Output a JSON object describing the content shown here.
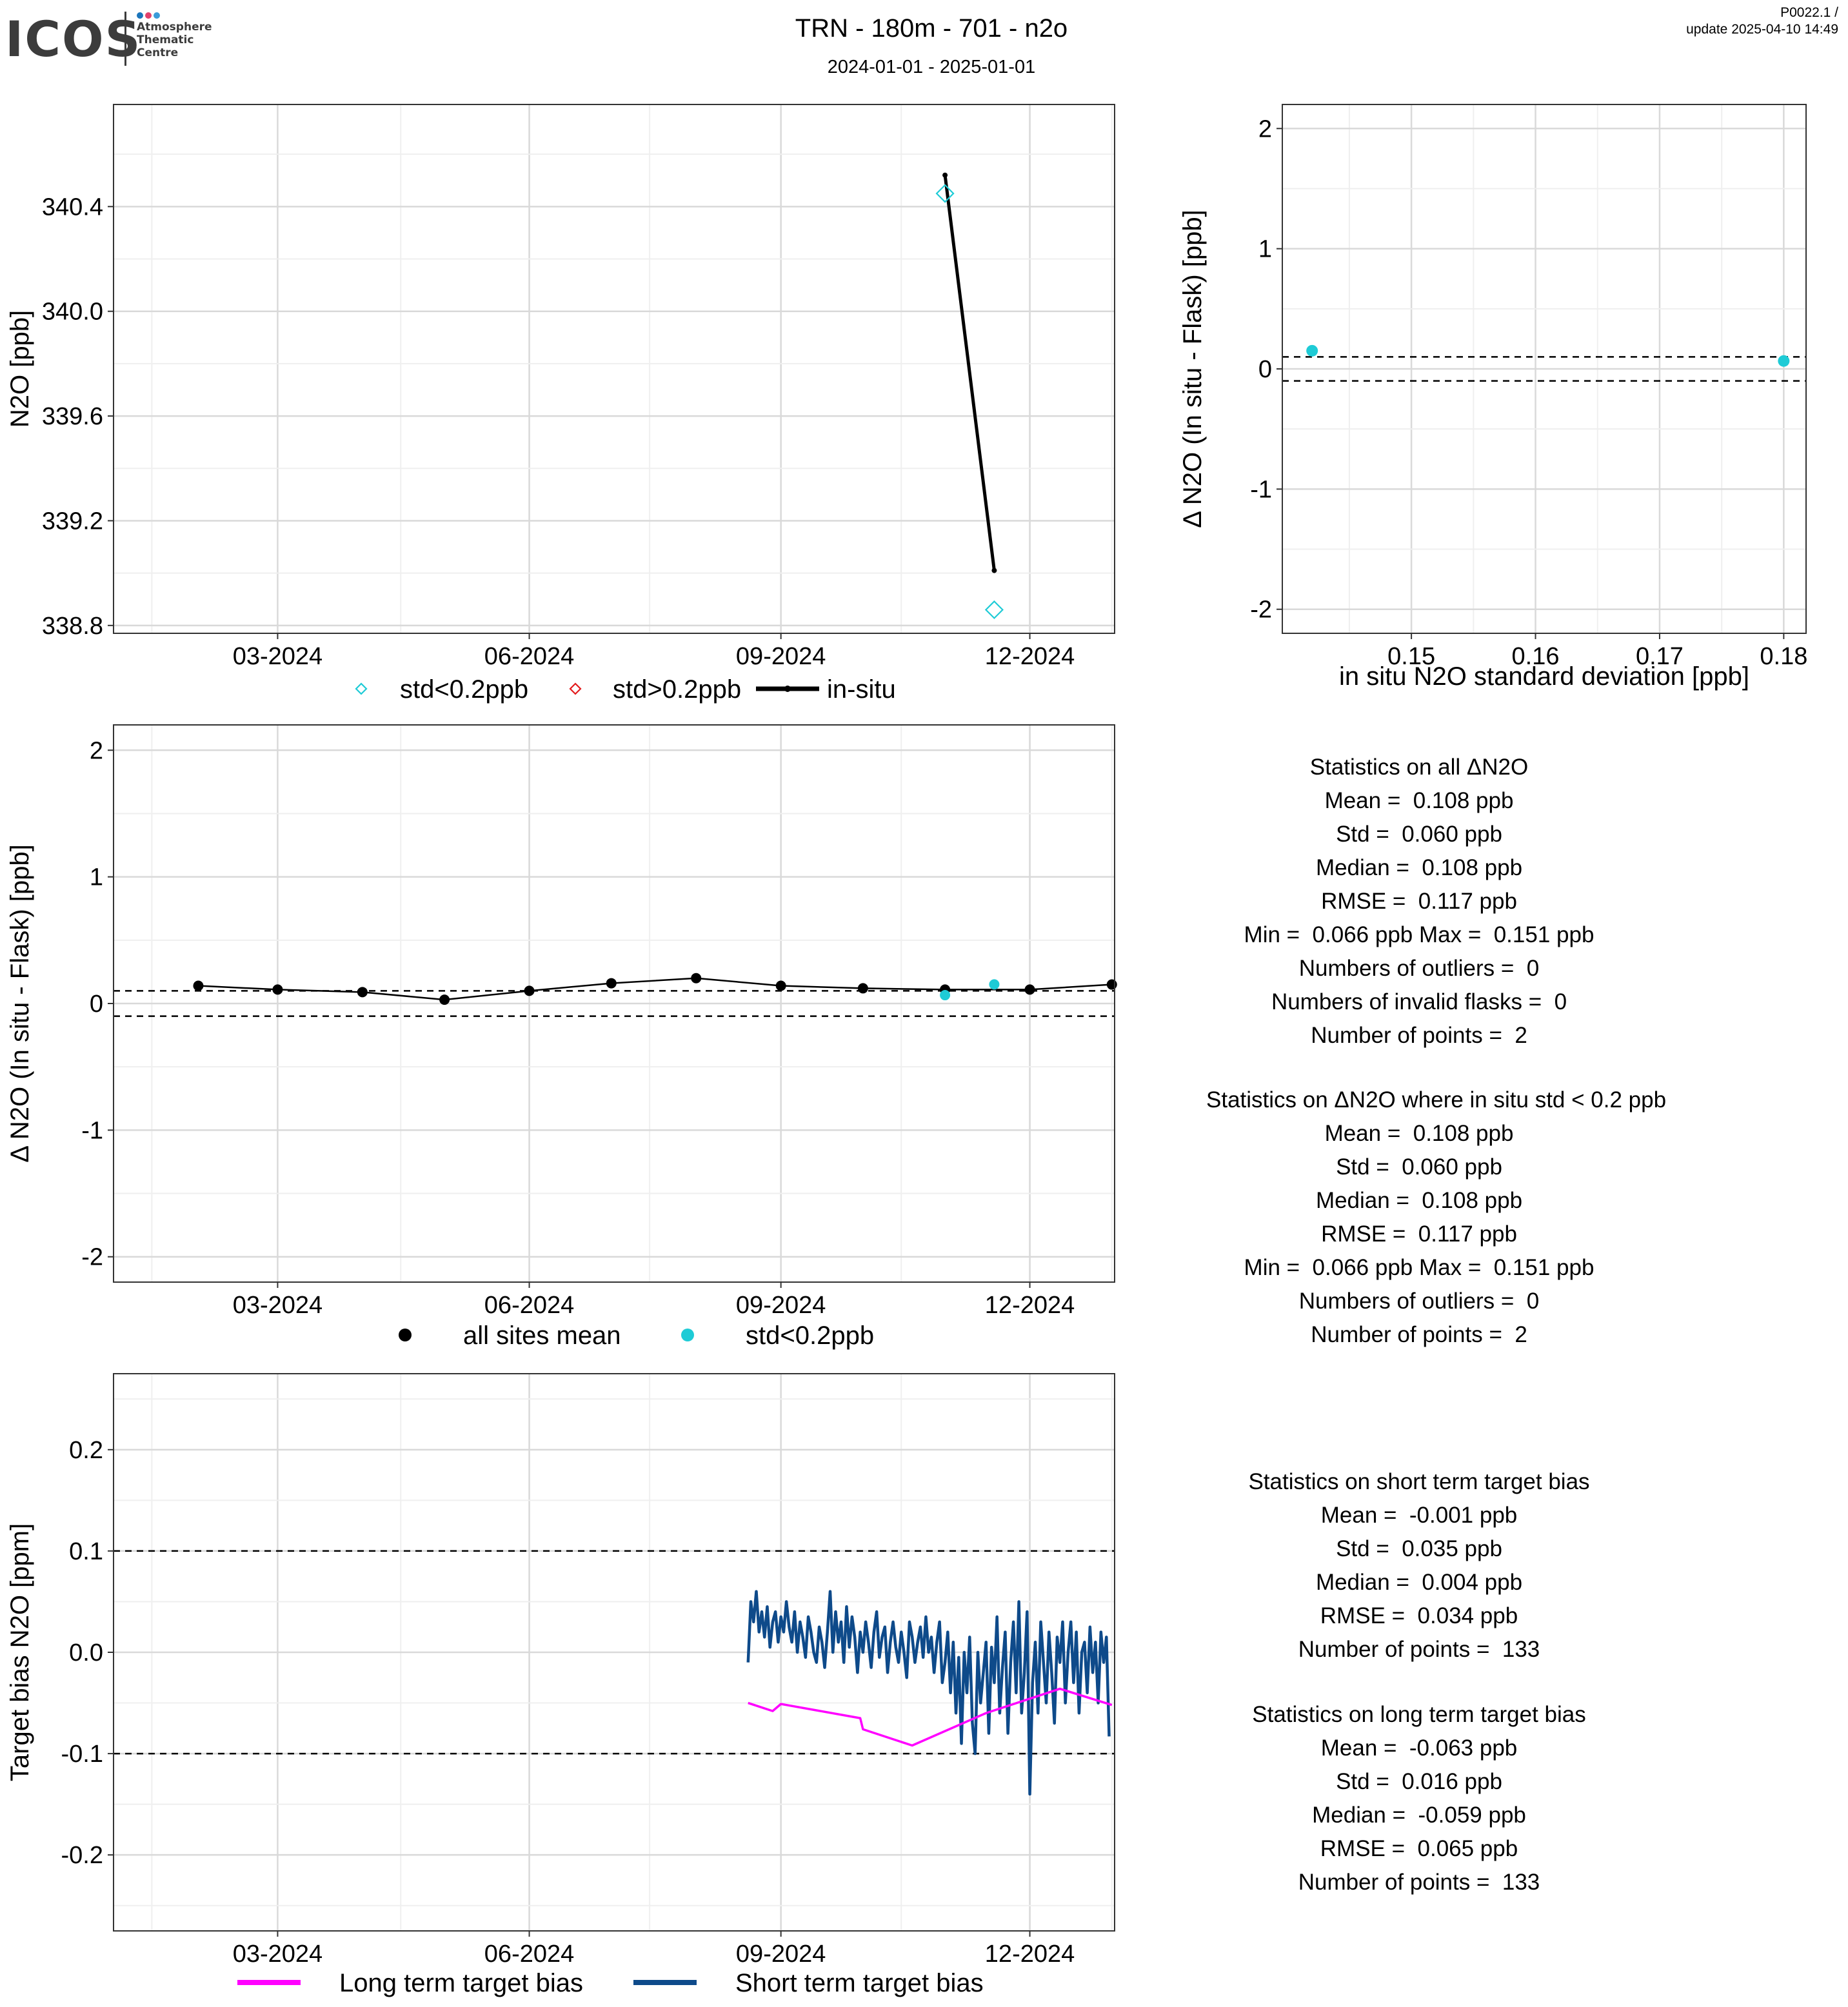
{
  "header": {
    "logo_main": "ICOS",
    "logo_sub": [
      "Atmosphere",
      "Thematic",
      "Centre"
    ],
    "title": "TRN - 180m - 701 - n2o",
    "subtitle": "2024-01-01 - 2025-01-01",
    "version": "P0022.1 /",
    "update": "update  2025-04-10 14:49"
  },
  "colors": {
    "cyan": "#1ECBD6",
    "red": "#E31A1C",
    "black": "#000000",
    "magenta": "#FF00FF",
    "navy": "#0E4A8A",
    "grid_major": "#D9D9D9",
    "grid_minor": "#EFEFEF"
  },
  "chart_data": [
    {
      "id": "n2o_timeseries",
      "type": "line",
      "ylabel": "N2O [ppb]",
      "xlabel": "",
      "x_ticks": [
        "03-2024",
        "06-2024",
        "09-2024",
        "12-2024"
      ],
      "xlim": [
        "2024-01-01",
        "2025-01-01"
      ],
      "ylim": [
        338.77,
        340.79
      ],
      "y_ticks": [
        "338.8",
        "339.2",
        "339.6",
        "340.0",
        "340.4"
      ],
      "series": [
        {
          "name": "in-situ",
          "style": "line",
          "x": [
            "2024-10-31",
            "2024-11-18"
          ],
          "y": [
            340.52,
            339.01
          ]
        },
        {
          "name": "std<0.2ppb",
          "style": "diamond",
          "x": [
            "2024-10-31",
            "2024-11-18"
          ],
          "y": [
            340.45,
            338.86
          ]
        },
        {
          "name": "std>0.2ppb",
          "style": "diamond",
          "x": [],
          "y": []
        }
      ],
      "legend": [
        "std<0.2ppb",
        "std>0.2ppb",
        "in-situ"
      ],
      "legend_position": "bottom"
    },
    {
      "id": "delta_vs_std",
      "type": "scatter",
      "ylabel": "Δ N2O (In situ - Flask) [ppb]",
      "xlabel": "in situ N2O standard deviation [ppb]",
      "xlim": [
        0.1396,
        0.1818
      ],
      "ylim": [
        -2.2,
        2.2
      ],
      "x_ticks": [
        "0.15",
        "0.16",
        "0.17",
        "0.18"
      ],
      "y_ticks": [
        "2",
        "1",
        "0",
        "-1",
        "-2"
      ],
      "ref_lines": [
        0.1,
        -0.1
      ],
      "series": [
        {
          "name": "std<0.2ppb",
          "x": [
            0.142,
            0.18
          ],
          "y": [
            0.151,
            0.066
          ]
        }
      ]
    },
    {
      "id": "delta_timeseries",
      "type": "scatter",
      "ylabel": "Δ N2O (In situ - Flask) [ppb]",
      "xlabel": "",
      "x_ticks": [
        "03-2024",
        "06-2024",
        "09-2024",
        "12-2024"
      ],
      "xlim": [
        "2024-01-01",
        "2025-01-01"
      ],
      "ylim": [
        -2.2,
        2.2
      ],
      "y_ticks": [
        "2",
        "1",
        "0",
        "-1",
        "-2"
      ],
      "ref_lines": [
        0.1,
        -0.1
      ],
      "series": [
        {
          "name": "all sites mean",
          "style": "line+point",
          "x": [
            "2024-02-01",
            "2024-03-01",
            "2024-04-01",
            "2024-05-01",
            "2024-06-01",
            "2024-07-01",
            "2024-08-01",
            "2024-09-01",
            "2024-10-01",
            "2024-10-31",
            "2024-12-01",
            "2024-12-31"
          ],
          "y": [
            0.14,
            0.11,
            0.09,
            0.03,
            0.1,
            0.16,
            0.2,
            0.14,
            0.12,
            0.11,
            0.11,
            0.15
          ]
        },
        {
          "name": "std<0.2ppb",
          "style": "point",
          "x": [
            "2024-10-31",
            "2024-11-18"
          ],
          "y": [
            0.066,
            0.151
          ]
        }
      ],
      "legend": [
        "all sites mean",
        "std<0.2ppb"
      ],
      "legend_position": "bottom"
    },
    {
      "id": "target_bias",
      "type": "line",
      "ylabel": "Target bias N2O [ppm]",
      "xlabel": "",
      "x_ticks": [
        "03-2024",
        "06-2024",
        "09-2024",
        "12-2024"
      ],
      "xlim": [
        "2024-01-01",
        "2025-01-01"
      ],
      "ylim": [
        -0.275,
        0.275
      ],
      "y_ticks": [
        "0.2",
        "0.1",
        "0.0",
        "-0.1",
        "-0.2"
      ],
      "ref_lines": [
        0.1,
        -0.1
      ],
      "series": [
        {
          "name": "Long term target bias",
          "x": [
            "2024-08-20",
            "2024-08-29",
            "2024-09-01",
            "2024-09-03",
            "2024-09-30",
            "2024-10-01",
            "2024-10-19",
            "2024-11-15",
            "2024-12-12",
            "2024-12-31"
          ],
          "y": [
            -0.05,
            -0.058,
            -0.051,
            -0.052,
            -0.065,
            -0.076,
            -0.092,
            -0.06,
            -0.036,
            -0.052
          ]
        },
        {
          "name": "Short term target bias",
          "x": [
            "2024-08-20",
            "2024-08-21",
            "2024-08-22",
            "2024-08-23",
            "2024-08-24",
            "2024-08-25",
            "2024-08-26",
            "2024-08-27",
            "2024-08-28",
            "2024-08-29",
            "2024-08-30",
            "2024-08-31",
            "2024-09-01",
            "2024-09-02",
            "2024-09-03",
            "2024-09-04",
            "2024-09-05",
            "2024-09-06",
            "2024-09-07",
            "2024-09-08",
            "2024-09-09",
            "2024-09-10",
            "2024-09-11",
            "2024-09-12",
            "2024-09-13",
            "2024-09-14",
            "2024-09-15",
            "2024-09-16",
            "2024-09-17",
            "2024-09-18",
            "2024-09-19",
            "2024-09-20",
            "2024-09-21",
            "2024-09-22",
            "2024-09-23",
            "2024-09-24",
            "2024-09-25",
            "2024-09-26",
            "2024-09-27",
            "2024-09-28",
            "2024-09-29",
            "2024-09-30",
            "2024-10-01",
            "2024-10-02",
            "2024-10-03",
            "2024-10-04",
            "2024-10-05",
            "2024-10-06",
            "2024-10-07",
            "2024-10-08",
            "2024-10-09",
            "2024-10-10",
            "2024-10-11",
            "2024-10-12",
            "2024-10-13",
            "2024-10-14",
            "2024-10-15",
            "2024-10-16",
            "2024-10-17",
            "2024-10-18",
            "2024-10-19",
            "2024-10-20",
            "2024-10-21",
            "2024-10-22",
            "2024-10-23",
            "2024-10-24",
            "2024-10-25",
            "2024-10-26",
            "2024-10-27",
            "2024-10-28",
            "2024-10-29",
            "2024-10-30",
            "2024-10-31",
            "2024-11-01",
            "2024-11-02",
            "2024-11-03",
            "2024-11-04",
            "2024-11-05",
            "2024-11-06",
            "2024-11-07",
            "2024-11-08",
            "2024-11-09",
            "2024-11-10",
            "2024-11-11",
            "2024-11-12",
            "2024-11-13",
            "2024-11-14",
            "2024-11-15",
            "2024-11-16",
            "2024-11-17",
            "2024-11-18",
            "2024-11-19",
            "2024-11-20",
            "2024-11-21",
            "2024-11-22",
            "2024-11-23",
            "2024-11-24",
            "2024-11-25",
            "2024-11-26",
            "2024-11-27",
            "2024-11-28",
            "2024-11-29",
            "2024-11-30",
            "2024-12-01",
            "2024-12-02",
            "2024-12-03",
            "2024-12-04",
            "2024-12-05",
            "2024-12-06",
            "2024-12-07",
            "2024-12-08",
            "2024-12-09",
            "2024-12-10",
            "2024-12-11",
            "2024-12-12",
            "2024-12-13",
            "2024-12-14",
            "2024-12-15",
            "2024-12-16",
            "2024-12-17",
            "2024-12-18",
            "2024-12-19",
            "2024-12-20",
            "2024-12-21",
            "2024-12-22",
            "2024-12-23",
            "2024-12-24",
            "2024-12-25",
            "2024-12-26",
            "2024-12-27",
            "2024-12-28",
            "2024-12-29",
            "2024-12-30"
          ],
          "y": [
            -0.01,
            0.05,
            0.03,
            0.06,
            0.02,
            0.04,
            0.015,
            0.045,
            0.005,
            0.03,
            0.04,
            0.01,
            0.035,
            0.02,
            0.05,
            0.025,
            0.01,
            0.04,
            0.0,
            0.03,
            0.015,
            -0.005,
            0.035,
            0.02,
            0.0,
            -0.01,
            0.025,
            0.01,
            -0.015,
            0.02,
            0.06,
            0.0,
            0.04,
            0.01,
            0.03,
            -0.01,
            0.045,
            0.005,
            0.035,
            0.015,
            -0.02,
            0.02,
            0.0,
            0.03,
            0.01,
            -0.015,
            0.02,
            0.04,
            -0.005,
            0.015,
            0.025,
            -0.02,
            0.01,
            0.03,
            0.005,
            -0.01,
            0.02,
            0.0,
            -0.025,
            0.03,
            0.015,
            -0.01,
            0.01,
            0.025,
            -0.005,
            0.035,
            0.0,
            0.015,
            -0.02,
            0.01,
            0.03,
            -0.03,
            -0.01,
            0.02,
            -0.04,
            0.01,
            -0.06,
            -0.005,
            -0.09,
            0.0,
            -0.04,
            0.015,
            -0.07,
            -0.1,
            0.0,
            -0.05,
            -0.02,
            0.01,
            -0.08,
            0.005,
            -0.03,
            0.035,
            -0.06,
            -0.015,
            0.02,
            -0.08,
            -0.01,
            0.03,
            -0.04,
            0.05,
            -0.06,
            -0.02,
            0.04,
            -0.14,
            -0.03,
            0.01,
            -0.06,
            0.03,
            -0.01,
            -0.05,
            0.02,
            -0.02,
            -0.07,
            0.015,
            -0.01,
            0.03,
            -0.05,
            0.0,
            0.03,
            -0.03,
            0.02,
            -0.06,
            0.0,
            0.01,
            -0.04,
            0.025,
            -0.02,
            0.01,
            -0.05,
            0.02,
            -0.01,
            0.015,
            -0.083
          ]
        }
      ],
      "legend": [
        "Long term target bias",
        "Short term target bias"
      ],
      "legend_position": "bottom"
    }
  ],
  "stats_all": {
    "title": "Statistics on all ΔN2O",
    "lines": [
      "Mean =  0.108 ppb",
      "Std =  0.060 ppb",
      "Median =  0.108 ppb",
      "RMSE =  0.117 ppb",
      "Min =  0.066 ppb Max =  0.151 ppb",
      "Numbers of outliers =  0",
      "Numbers of invalid flasks =  0",
      "Number of points =  2"
    ]
  },
  "stats_std": {
    "title": "Statistics on ΔN2O where in situ std < 0.2 ppb",
    "lines": [
      "Mean =  0.108 ppb",
      "Std =  0.060 ppb",
      "Median =  0.108 ppb",
      "RMSE =  0.117 ppb",
      "Min =  0.066 ppb Max =  0.151 ppb",
      "Numbers of outliers =  0",
      "Number of points =  2"
    ]
  },
  "stats_short": {
    "title": "Statistics on short term target bias",
    "lines": [
      "Mean =  -0.001 ppb",
      "Std =  0.035 ppb",
      "Median =  0.004 ppb",
      "RMSE =  0.034 ppb",
      "Number of points =  133"
    ]
  },
  "stats_long": {
    "title": "Statistics on long term target bias",
    "lines": [
      "Mean =  -0.063 ppb",
      "Std =  0.016 ppb",
      "Median =  -0.059 ppb",
      "RMSE =  0.065 ppb",
      "Number of points =  133"
    ]
  }
}
